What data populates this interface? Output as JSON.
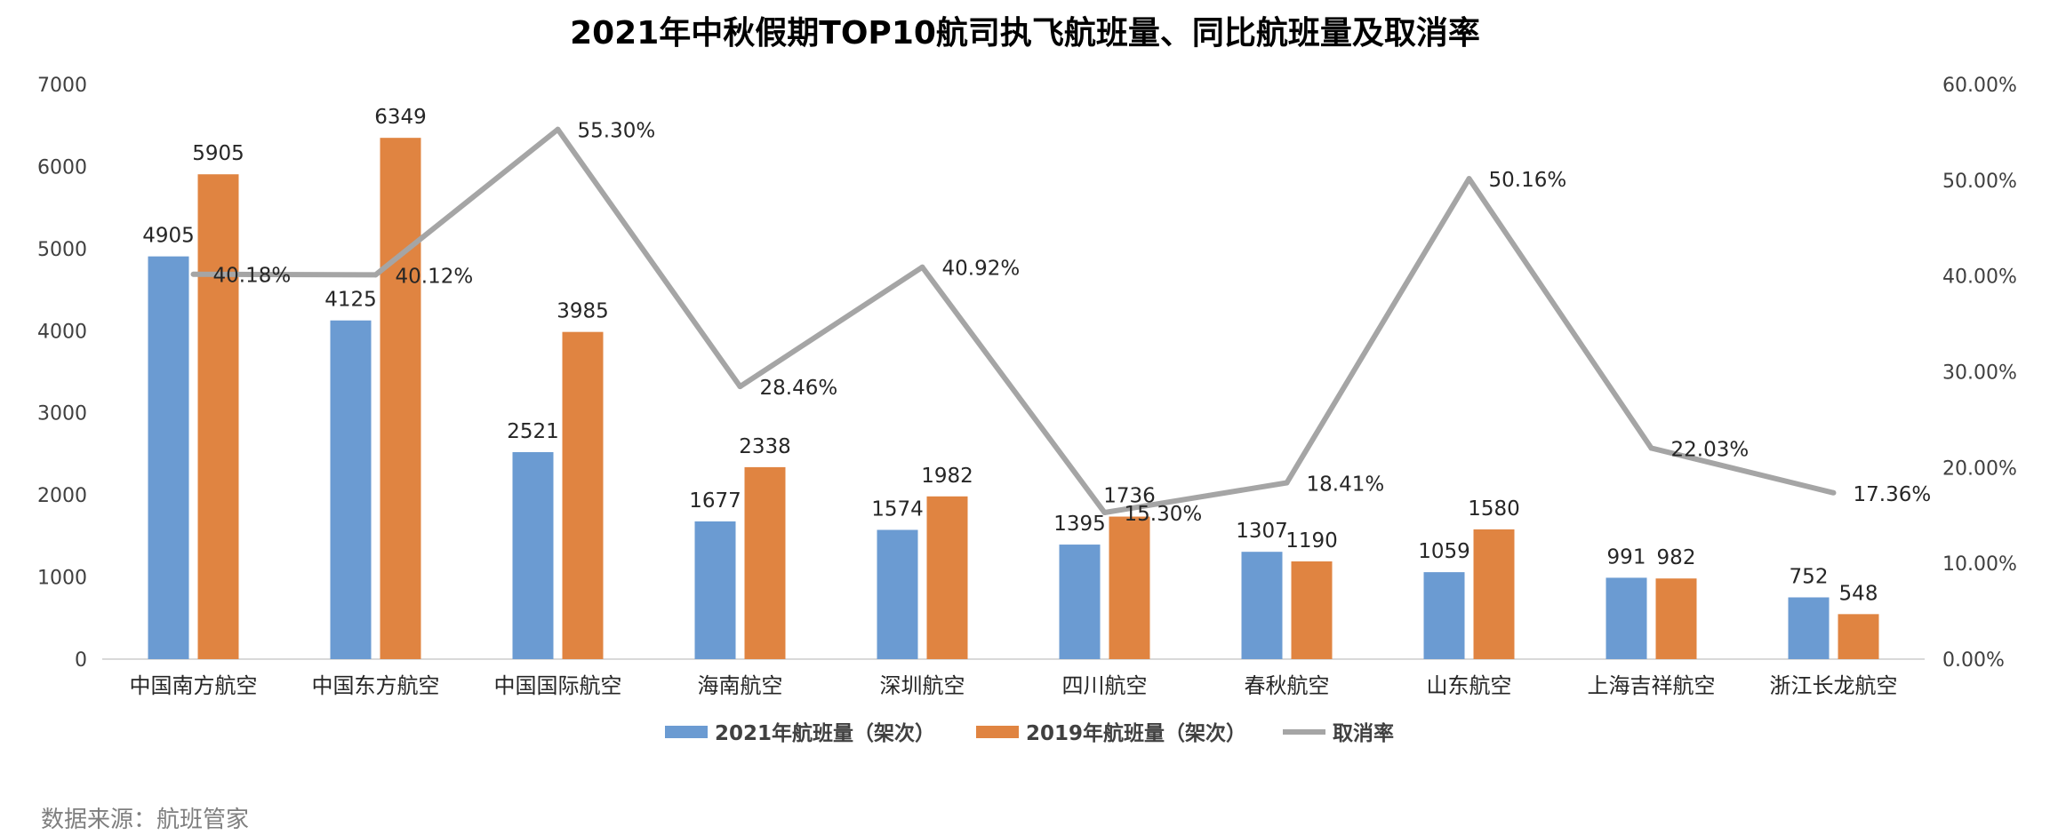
{
  "chart_data": {
    "type": "bar",
    "title": "2021年中秋假期TOP10航司执飞航班量、同比航班量及取消率",
    "categories": [
      "中国南方航空",
      "中国东方航空",
      "中国国际航空",
      "海南航空",
      "深圳航空",
      "四川航空",
      "春秋航空",
      "山东航空",
      "上海吉祥航空",
      "浙江长龙航空"
    ],
    "series": [
      {
        "name": "2021年航班量（架次）",
        "type": "bar",
        "axis": "left",
        "color": "#6b9bd2",
        "values": [
          4905,
          4125,
          2521,
          1677,
          1574,
          1395,
          1307,
          1059,
          991,
          752
        ],
        "labels": [
          "4905",
          "4125",
          "2521",
          "1677",
          "1574",
          "1395",
          "1307",
          "1059",
          "991",
          "752"
        ]
      },
      {
        "name": "2019年航班量（架次）",
        "type": "bar",
        "axis": "left",
        "color": "#e08441",
        "values": [
          5905,
          6349,
          3985,
          2338,
          1982,
          1736,
          1190,
          1580,
          982,
          548
        ],
        "labels": [
          "5905",
          "6349",
          "3985",
          "2338",
          "1982",
          "1736",
          "1190",
          "1580",
          "982",
          "548"
        ]
      },
      {
        "name": "取消率",
        "type": "line",
        "axis": "right",
        "color": "#a5a5a5",
        "values": [
          40.18,
          40.12,
          55.3,
          28.46,
          40.92,
          15.3,
          18.41,
          50.16,
          22.03,
          17.36
        ],
        "labels": [
          "40.18%",
          "40.12%",
          "55.30%",
          "28.46%",
          "40.92%",
          "15.30%",
          "18.41%",
          "50.16%",
          "22.03%",
          "17.36%"
        ]
      }
    ],
    "y_left": {
      "min": 0,
      "max": 7000,
      "ticks": [
        "0",
        "1000",
        "2000",
        "3000",
        "4000",
        "5000",
        "6000",
        "7000"
      ]
    },
    "y_right": {
      "min": 0,
      "max": 60,
      "ticks": [
        "0.00%",
        "10.00%",
        "20.00%",
        "30.00%",
        "40.00%",
        "50.00%",
        "60.00%"
      ]
    },
    "grid": false,
    "legend_position": "bottom"
  },
  "source_note": "数据来源：航班管家"
}
